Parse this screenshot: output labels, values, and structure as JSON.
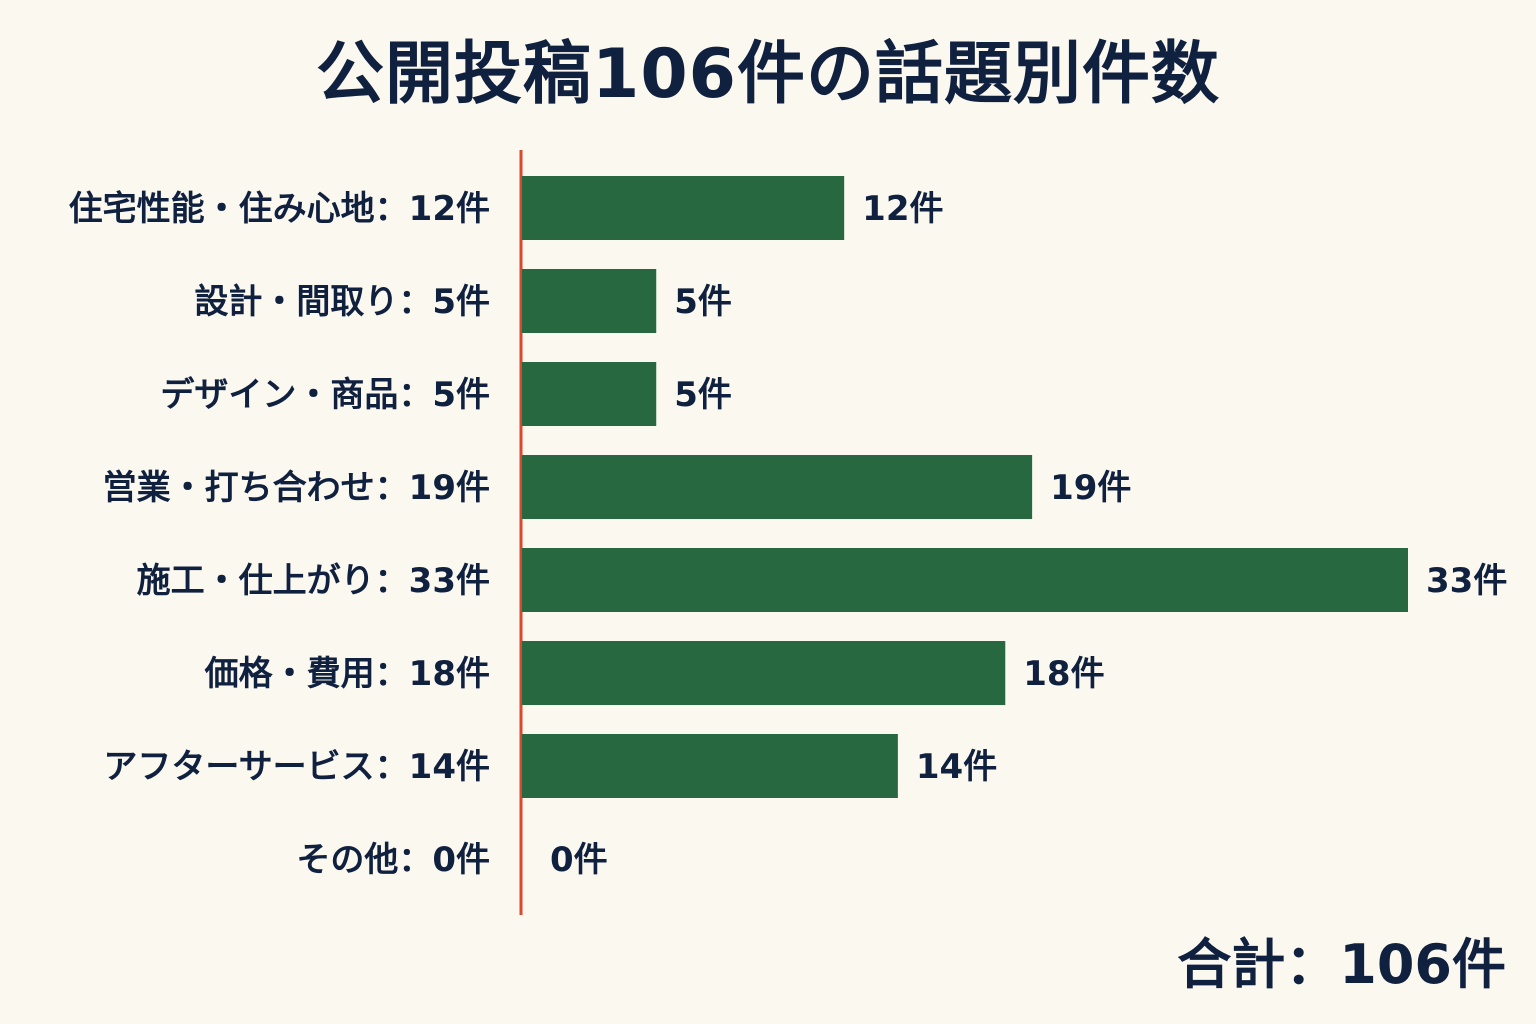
{
  "chart_data": {
    "type": "bar",
    "orientation": "horizontal",
    "title": "公開投稿106件の話題別件数",
    "categories": [
      "住宅性能・住み心地",
      "設計・間取り",
      "デザイン・商品",
      "営業・打ち合わせ",
      "施工・仕上がり",
      "価格・費用",
      "アフターサービス",
      "その他"
    ],
    "category_labels": [
      "住宅性能・住み心地：12件",
      "設計・間取り：5件",
      "デザイン・商品：5件",
      "営業・打ち合わせ：19件",
      "施工・仕上がり：33件",
      "価格・費用：18件",
      "アフターサービス：14件",
      "その他：0件"
    ],
    "values": [
      12,
      5,
      5,
      19,
      33,
      18,
      14,
      0
    ],
    "value_labels": [
      "12件",
      "5件",
      "5件",
      "19件",
      "33件",
      "18件",
      "14件",
      "0件"
    ],
    "xlim": [
      0,
      33
    ],
    "grid": false,
    "legend": "none",
    "total_label": "合計：106件",
    "colors": {
      "bar": "#276841",
      "axis": "#d9482f",
      "text": "#10203f",
      "background": "#fbf8ef"
    }
  }
}
